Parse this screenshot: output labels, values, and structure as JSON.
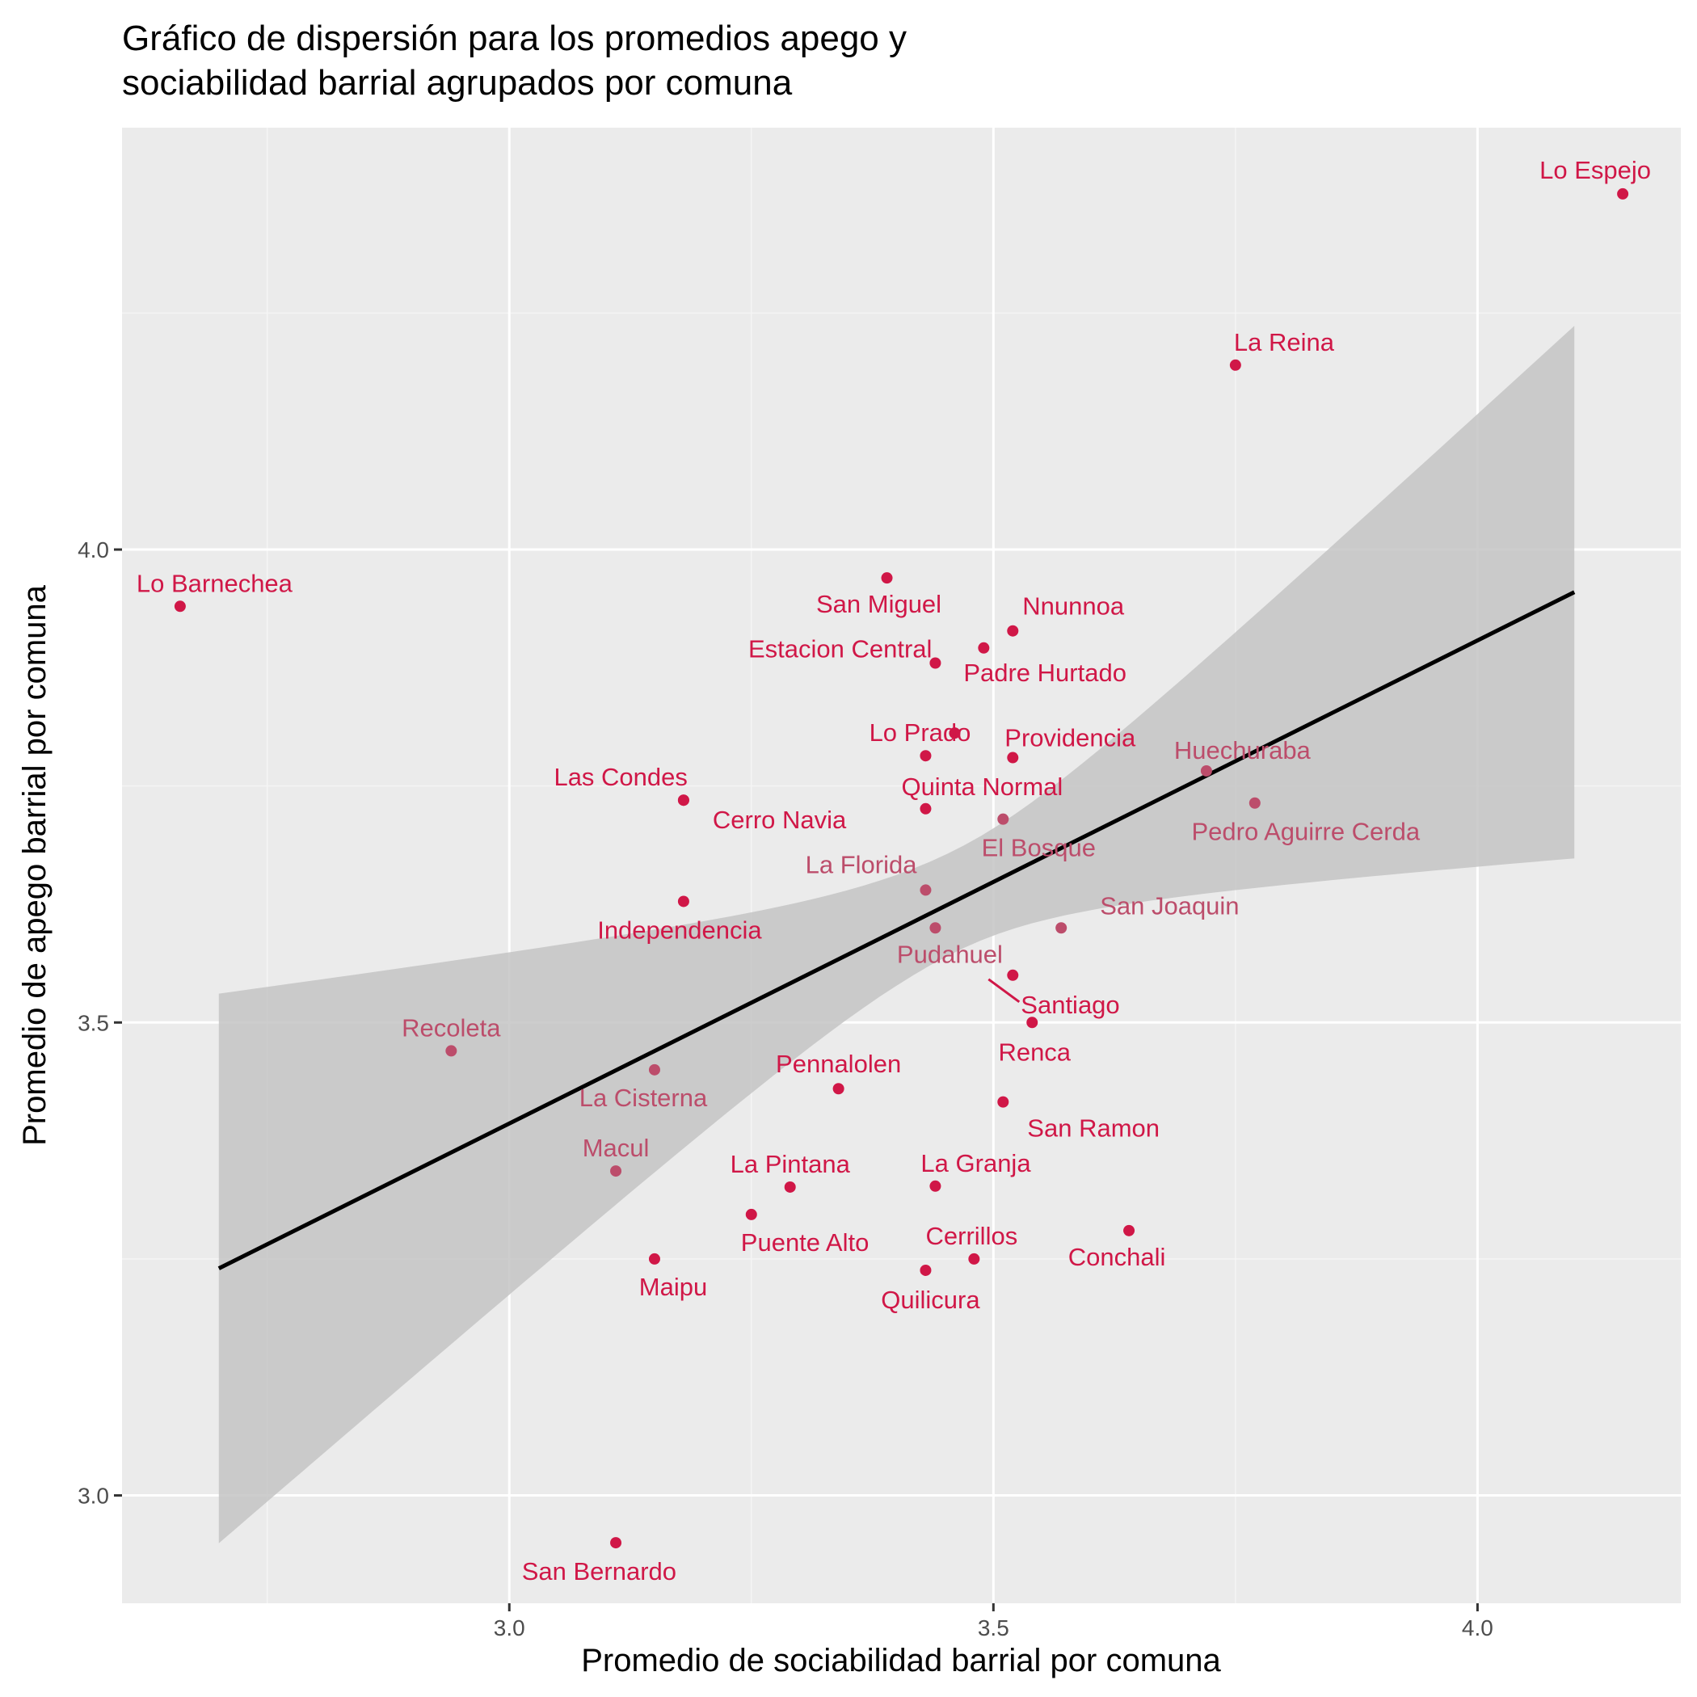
{
  "chart_data": {
    "type": "scatter",
    "title": "Gráfico de dispersión para los promedios apego y sociabilidad barrial agrupados por comuna",
    "title_lines": [
      "Gráfico de dispersión para los promedios apego y",
      "sociabilidad barrial agrupados por comuna"
    ],
    "xlabel": "Promedio de sociabilidad barrial por comuna",
    "ylabel": "Promedio de apego barrial por comuna",
    "xlim": [
      2.6,
      4.21
    ],
    "ylim": [
      2.886,
      4.446
    ],
    "x_ticks": [
      3.0,
      3.5,
      4.0
    ],
    "x_tick_labels": [
      "3.0",
      "3.5",
      "4.0"
    ],
    "y_ticks": [
      3.0,
      3.5,
      4.0
    ],
    "y_tick_labels": [
      "3.0",
      "3.5",
      "4.0"
    ],
    "grid": true,
    "legend": "none",
    "colors": {
      "panel_background": "#EBEBEB",
      "grid_major": "#FFFFFF",
      "grid_minor": "#F5F5F5",
      "point_strong": "#D01747",
      "point_muted": "#BC4D6B",
      "regression_line": "#000000",
      "confidence_band": "#C4C4C4"
    },
    "regression": {
      "method": "lm",
      "x_range": [
        2.7,
        4.1
      ],
      "y_at_start": 3.24,
      "y_at_end": 3.955,
      "ci_upper_at_start": 3.533,
      "ci_upper_at_end": 4.238,
      "ci_lower_at_start": 2.952,
      "ci_lower_at_end": 3.675,
      "ci_upper_at_mean": 3.67,
      "ci_lower_at_mean": 3.562,
      "x_mean": 3.46
    },
    "points": [
      {
        "label": "Lo Espejo",
        "x": 4.15,
        "y": 4.376,
        "shade": "strong",
        "label_pos": "above"
      },
      {
        "label": "La Reina",
        "x": 3.75,
        "y": 4.195,
        "shade": "strong",
        "label_pos": "above-right"
      },
      {
        "label": "Lo Barnechea",
        "x": 2.66,
        "y": 3.94,
        "shade": "strong",
        "label_pos": "above-right"
      },
      {
        "label": "San Miguel",
        "x": 3.39,
        "y": 3.97,
        "shade": "strong",
        "label_pos": "below-left"
      },
      {
        "label": "Nnunnoa",
        "x": 3.52,
        "y": 3.914,
        "shade": "strong",
        "label_pos": "above-right"
      },
      {
        "label": "Padre Hurtado",
        "x": 3.49,
        "y": 3.896,
        "shade": "strong",
        "label_pos": "below-right"
      },
      {
        "label": "Estacion Central",
        "x": 3.44,
        "y": 3.88,
        "shade": "strong",
        "label_pos": "left"
      },
      {
        "label": "Lo Prado",
        "x": 3.46,
        "y": 3.806,
        "shade": "strong",
        "label_pos": "left-overlap"
      },
      {
        "label": "Lo Prado",
        "x": 3.43,
        "y": 3.782,
        "shade": "strong",
        "label_pos": "none"
      },
      {
        "label": "Providencia",
        "x": 3.52,
        "y": 3.78,
        "shade": "strong",
        "label_pos": "above-right"
      },
      {
        "label": "Quinta Normal",
        "x": 3.43,
        "y": 3.726,
        "shade": "strong",
        "label_pos": "above-right"
      },
      {
        "label": "Las Condes",
        "x": 3.18,
        "y": 3.735,
        "shade": "strong",
        "label_pos": "above-left"
      },
      {
        "label": "Cerro Navia",
        "x": 3.18,
        "y": 3.735,
        "shade": "strong",
        "label_pos": "below-right"
      },
      {
        "label": "Huechuraba",
        "x": 3.72,
        "y": 3.766,
        "shade": "muted",
        "label_pos": "above-right"
      },
      {
        "label": "Pedro Aguirre Cerda",
        "x": 3.77,
        "y": 3.732,
        "shade": "muted",
        "label_pos": "below"
      },
      {
        "label": "El Bosque",
        "x": 3.51,
        "y": 3.715,
        "shade": "muted",
        "label_pos": "below"
      },
      {
        "label": "La Florida",
        "x": 3.43,
        "y": 3.64,
        "shade": "muted",
        "label_pos": "above-left"
      },
      {
        "label": "Independencia",
        "x": 3.18,
        "y": 3.628,
        "shade": "strong",
        "label_pos": "below"
      },
      {
        "label": "San Joaquin",
        "x": 3.57,
        "y": 3.6,
        "shade": "muted",
        "label_pos": "above-right"
      },
      {
        "label": "Pudahuel",
        "x": 3.44,
        "y": 3.6,
        "shade": "muted",
        "label_pos": "below"
      },
      {
        "label": "Santiago",
        "x": 3.52,
        "y": 3.55,
        "shade": "strong",
        "label_pos": "below-right-leader"
      },
      {
        "label": "Renca",
        "x": 3.54,
        "y": 3.5,
        "shade": "strong",
        "label_pos": "below"
      },
      {
        "label": "Recoleta",
        "x": 2.94,
        "y": 3.47,
        "shade": "muted",
        "label_pos": "above"
      },
      {
        "label": "La Cisterna",
        "x": 3.15,
        "y": 3.45,
        "shade": "muted",
        "label_pos": "below"
      },
      {
        "label": "Pennalolen",
        "x": 3.34,
        "y": 3.43,
        "shade": "strong",
        "label_pos": "above"
      },
      {
        "label": "San Ramon",
        "x": 3.51,
        "y": 3.416,
        "shade": "strong",
        "label_pos": "below-right"
      },
      {
        "label": "Macul",
        "x": 3.11,
        "y": 3.343,
        "shade": "muted",
        "label_pos": "above"
      },
      {
        "label": "La Pintana",
        "x": 3.29,
        "y": 3.326,
        "shade": "strong",
        "label_pos": "above"
      },
      {
        "label": "La Granja",
        "x": 3.44,
        "y": 3.327,
        "shade": "strong",
        "label_pos": "above-right"
      },
      {
        "label": "Puente Alto",
        "x": 3.25,
        "y": 3.297,
        "shade": "strong",
        "label_pos": "below-right"
      },
      {
        "label": "Conchali",
        "x": 3.64,
        "y": 3.28,
        "shade": "strong",
        "label_pos": "below"
      },
      {
        "label": "Maipu",
        "x": 3.15,
        "y": 3.25,
        "shade": "strong",
        "label_pos": "below"
      },
      {
        "label": "Cerrillos",
        "x": 3.48,
        "y": 3.25,
        "shade": "strong",
        "label_pos": "above"
      },
      {
        "label": "Quilicura",
        "x": 3.43,
        "y": 3.238,
        "shade": "strong",
        "label_pos": "below"
      },
      {
        "label": "San Bernardo",
        "x": 3.11,
        "y": 2.95,
        "shade": "strong",
        "label_pos": "below-left"
      }
    ]
  }
}
